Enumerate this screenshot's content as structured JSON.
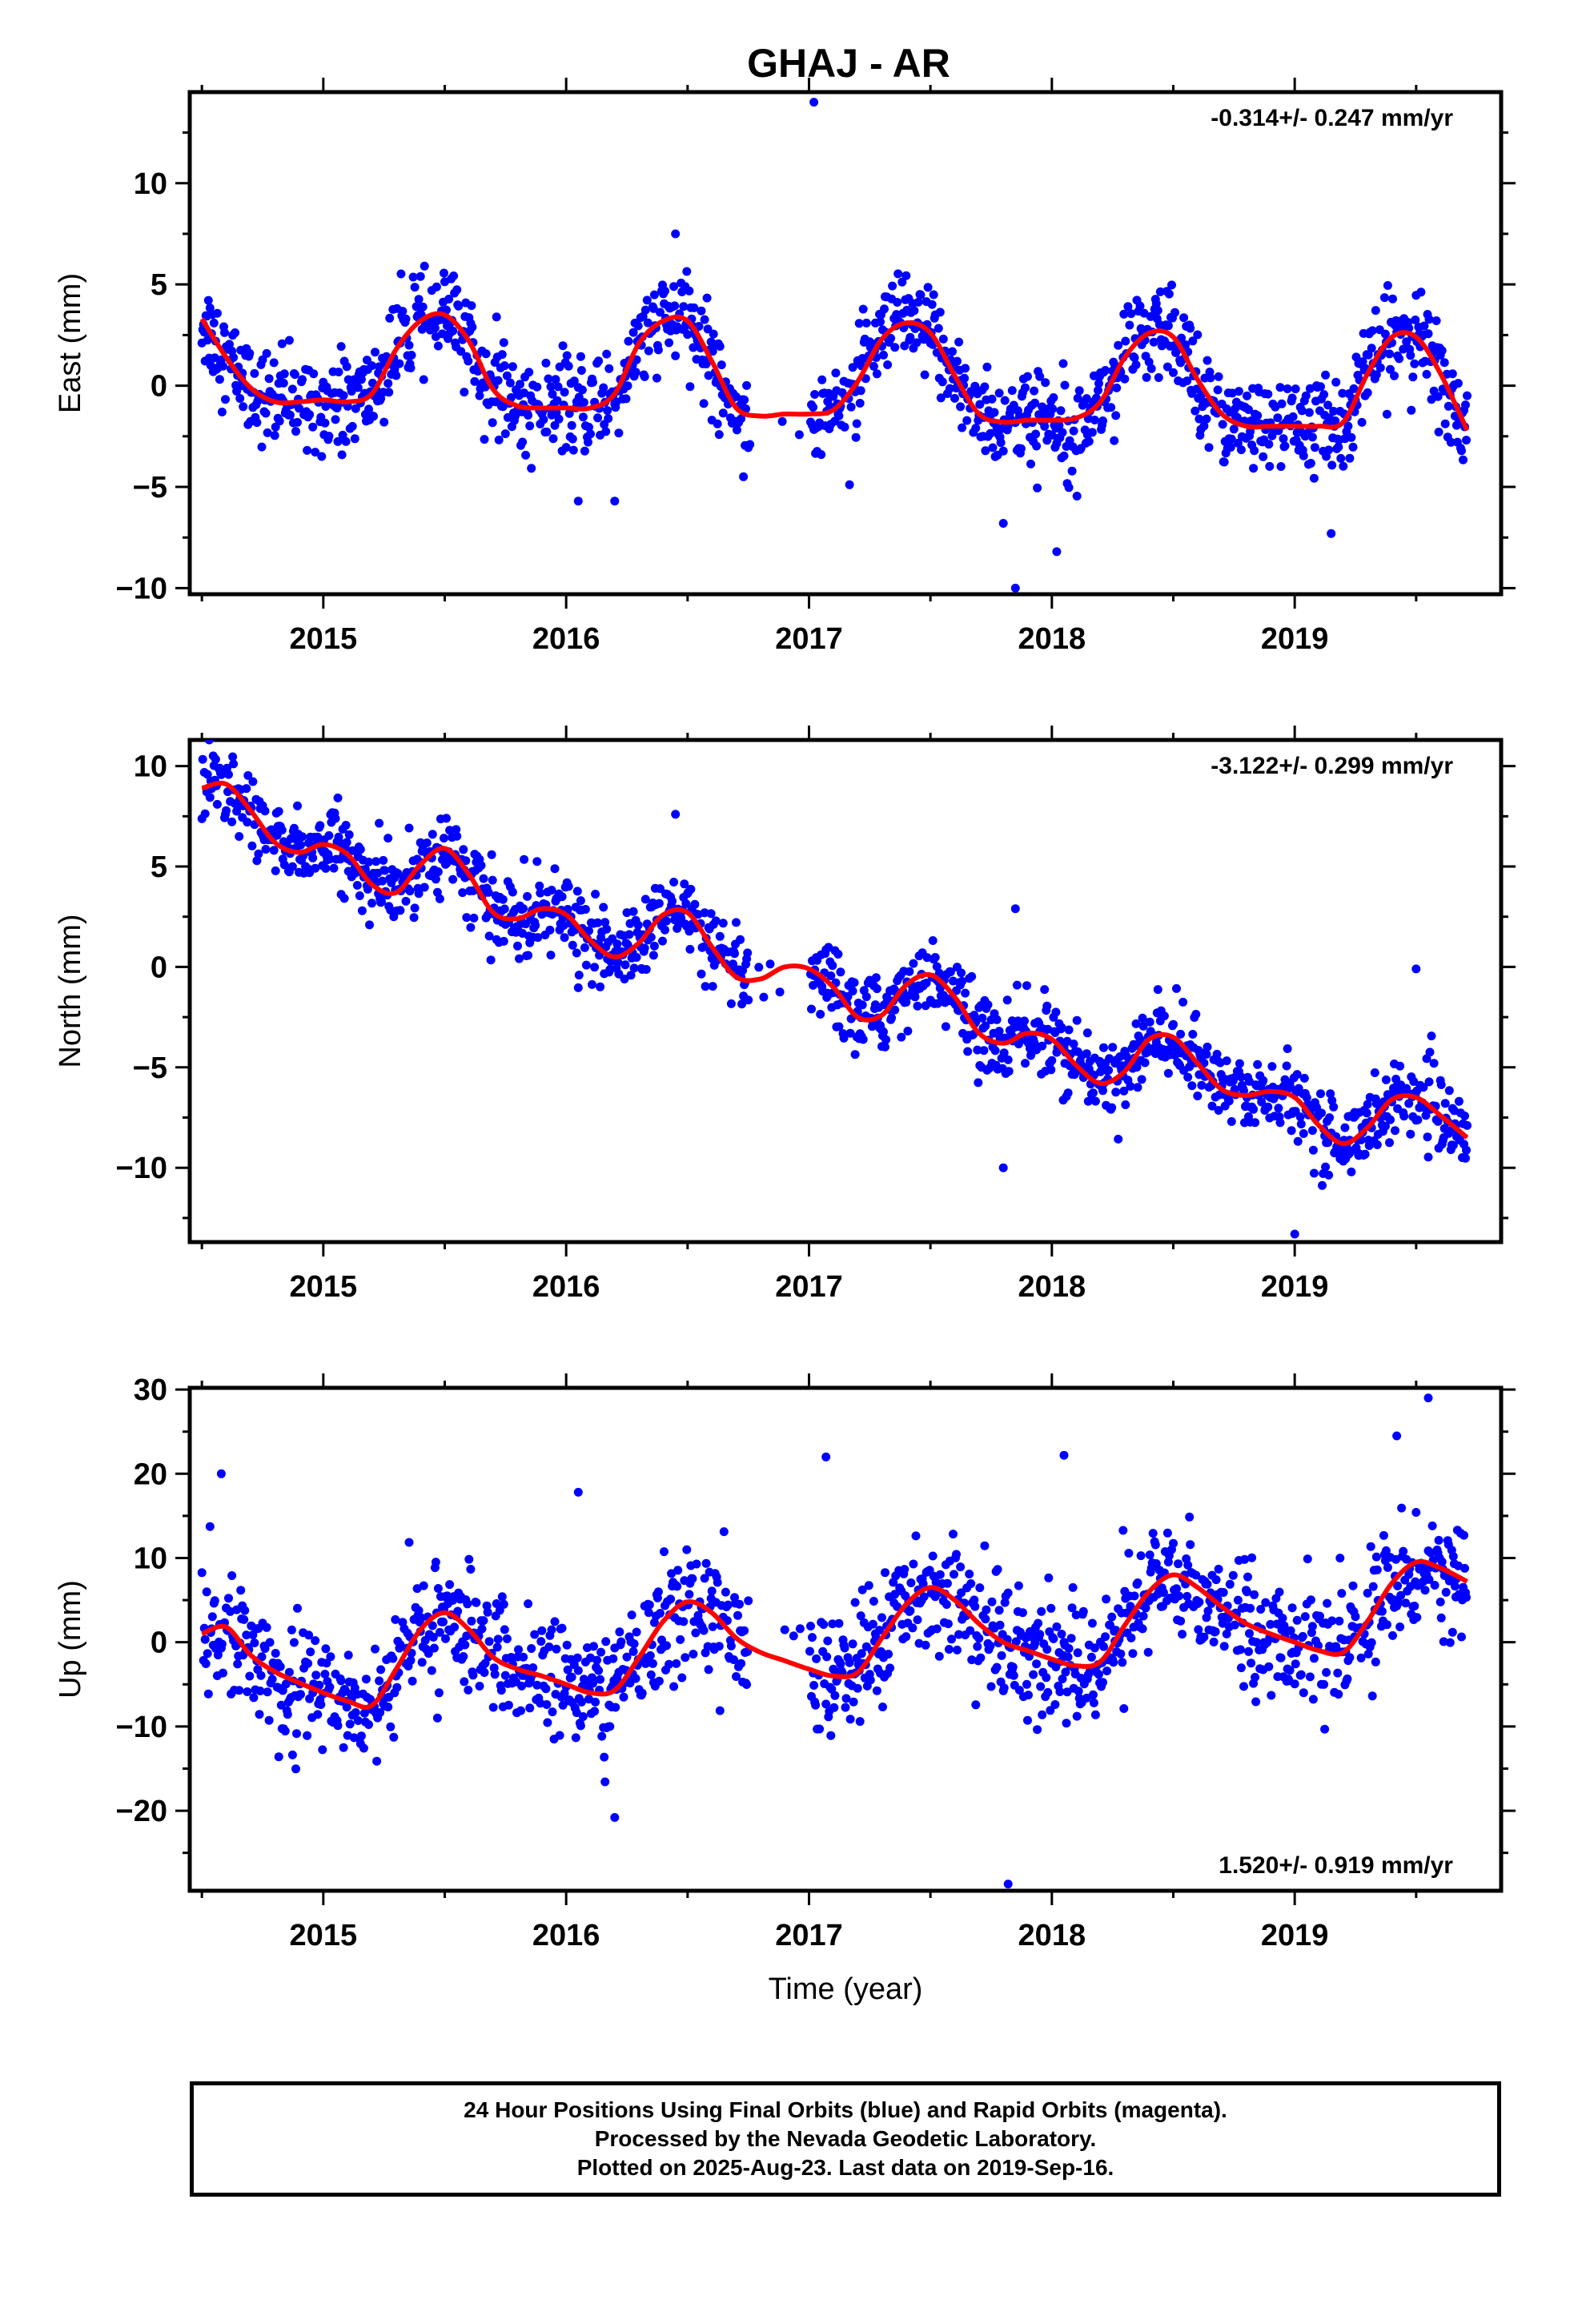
{
  "title": "GHAJ - AR",
  "colors": {
    "data": "#0000ff",
    "fit": "#ff0000",
    "axis": "#000000"
  },
  "chart_data": [
    {
      "type": "scatter",
      "panel": "east",
      "ylabel": "East (mm)",
      "xlabel": "",
      "xlim": [
        2014.45,
        2019.85
      ],
      "ylim": [
        -10.3,
        14.5
      ],
      "yticks": [
        -10,
        -5,
        0,
        5,
        10
      ],
      "xticks": [
        2015,
        2016,
        2017,
        2018,
        2019
      ],
      "trend_label": "-0.314+/- 0.247 mm/yr",
      "trend_position": "top-right",
      "data_gap": [
        2016.75,
        2017.0
      ],
      "data_range": [
        2014.5,
        2019.71
      ],
      "fit": {
        "x": [
          2014.5,
          2014.6,
          2014.7,
          2014.8,
          2014.9,
          2015.0,
          2015.1,
          2015.2,
          2015.3,
          2015.4,
          2015.5,
          2015.6,
          2015.7,
          2015.8,
          2015.9,
          2016.0,
          2016.1,
          2016.2,
          2016.3,
          2016.4,
          2016.5,
          2016.6,
          2016.7,
          2016.8,
          2016.9,
          2017.0,
          2017.1,
          2017.2,
          2017.3,
          2017.4,
          2017.5,
          2017.6,
          2017.7,
          2017.8,
          2017.9,
          2018.0,
          2018.1,
          2018.2,
          2018.3,
          2018.4,
          2018.5,
          2018.6,
          2018.7,
          2018.8,
          2018.9,
          2019.0,
          2019.1,
          2019.2,
          2019.3,
          2019.4,
          2019.5,
          2019.6,
          2019.71
        ],
        "y": [
          3.3,
          1.4,
          -0.1,
          -0.8,
          -0.8,
          -0.7,
          -0.8,
          -0.4,
          1.8,
          3.2,
          3.5,
          2.2,
          -0.2,
          -1.0,
          -1.1,
          -1.1,
          -1.1,
          -0.4,
          2.1,
          3.2,
          3.2,
          1.2,
          -1.1,
          -1.5,
          -1.4,
          -1.4,
          -1.2,
          0.2,
          2.3,
          3.1,
          2.6,
          0.5,
          -1.4,
          -1.8,
          -1.7,
          -1.7,
          -1.6,
          -0.8,
          1.4,
          2.6,
          2.4,
          0.3,
          -1.4,
          -2.0,
          -2.0,
          -2.0,
          -2.0,
          -1.8,
          0.6,
          2.4,
          2.4,
          0.6,
          -2.2
        ]
      },
      "scatter_std": 1.15,
      "outliers": {
        "x": [
          2017.02,
          2017.85,
          2018.02,
          2019.15,
          2016.05,
          2016.2,
          2017.8,
          2016.45
        ],
        "y": [
          14.0,
          -10.0,
          -8.2,
          -7.3,
          -5.7,
          -5.7,
          -6.8,
          7.5
        ]
      }
    },
    {
      "type": "scatter",
      "panel": "north",
      "ylabel": "North (mm)",
      "xlabel": "",
      "xlim": [
        2014.45,
        2019.85
      ],
      "ylim": [
        -13.7,
        11.3
      ],
      "yticks": [
        -10,
        -5,
        0,
        5,
        10
      ],
      "xticks": [
        2015,
        2016,
        2017,
        2018,
        2019
      ],
      "trend_label": "-3.122+/- 0.299 mm/yr",
      "trend_position": "top-right",
      "data_gap": [
        2016.75,
        2017.0
      ],
      "data_range": [
        2014.5,
        2019.71
      ],
      "fit": {
        "x": [
          2014.5,
          2014.6,
          2014.7,
          2014.8,
          2014.9,
          2015.0,
          2015.1,
          2015.2,
          2015.3,
          2015.4,
          2015.5,
          2015.6,
          2015.7,
          2015.8,
          2015.9,
          2016.0,
          2016.1,
          2016.2,
          2016.3,
          2016.4,
          2016.5,
          2016.6,
          2016.7,
          2016.8,
          2016.9,
          2017.0,
          2017.1,
          2017.2,
          2017.3,
          2017.4,
          2017.5,
          2017.6,
          2017.7,
          2017.8,
          2017.9,
          2018.0,
          2018.1,
          2018.2,
          2018.3,
          2018.4,
          2018.5,
          2018.6,
          2018.7,
          2018.8,
          2018.9,
          2019.0,
          2019.1,
          2019.2,
          2019.3,
          2019.4,
          2019.5,
          2019.6,
          2019.71
        ],
        "y": [
          8.9,
          9.1,
          7.8,
          6.2,
          5.7,
          6.1,
          5.6,
          4.1,
          3.7,
          5.1,
          5.9,
          4.6,
          2.7,
          2.4,
          2.9,
          2.6,
          1.3,
          0.5,
          1.2,
          2.6,
          2.7,
          1.0,
          -0.5,
          -0.6,
          0.0,
          -0.1,
          -1.0,
          -2.5,
          -2.4,
          -0.9,
          -0.4,
          -1.5,
          -3.3,
          -3.8,
          -3.3,
          -3.6,
          -4.9,
          -5.8,
          -5.2,
          -3.6,
          -3.5,
          -4.8,
          -6.1,
          -6.4,
          -6.2,
          -6.5,
          -7.9,
          -8.8,
          -8.0,
          -6.6,
          -6.5,
          -7.4,
          -8.5
        ]
      },
      "scatter_std": 0.95,
      "outliers": {
        "x": [
          2017.8,
          2019.5,
          2019.0,
          2016.45,
          2017.85
        ],
        "y": [
          -10.0,
          -0.1,
          -13.3,
          7.6,
          2.9
        ]
      }
    },
    {
      "type": "scatter",
      "panel": "up",
      "ylabel": "Up (mm)",
      "xlabel": "Time (year)",
      "xlim": [
        2014.45,
        2019.85
      ],
      "ylim": [
        -29.5,
        30.2
      ],
      "yticks": [
        -20,
        -10,
        0,
        10,
        20,
        30
      ],
      "xticks": [
        2015,
        2016,
        2017,
        2018,
        2019
      ],
      "trend_label": "1.520+/- 0.919 mm/yr",
      "trend_position": "bottom-right",
      "data_gap": [
        2016.75,
        2017.0
      ],
      "data_range": [
        2014.5,
        2019.71
      ],
      "fit": {
        "x": [
          2014.5,
          2014.6,
          2014.7,
          2014.8,
          2014.9,
          2015.0,
          2015.1,
          2015.2,
          2015.3,
          2015.4,
          2015.5,
          2015.6,
          2015.7,
          2015.8,
          2015.9,
          2016.0,
          2016.1,
          2016.2,
          2016.3,
          2016.4,
          2016.5,
          2016.6,
          2016.7,
          2016.8,
          2016.9,
          2017.0,
          2017.1,
          2017.2,
          2017.3,
          2017.4,
          2017.5,
          2017.6,
          2017.7,
          2017.8,
          2017.9,
          2018.0,
          2018.1,
          2018.2,
          2018.3,
          2018.4,
          2018.5,
          2018.6,
          2018.7,
          2018.8,
          2018.9,
          2019.0,
          2019.1,
          2019.2,
          2019.3,
          2019.4,
          2019.5,
          2019.6,
          2019.71
        ],
        "y": [
          1.0,
          1.8,
          -1.5,
          -3.5,
          -4.8,
          -6.0,
          -7.0,
          -7.5,
          -3.2,
          1.5,
          3.5,
          1.5,
          -1.8,
          -3.2,
          -4.0,
          -5.0,
          -6.0,
          -5.7,
          -1.8,
          2.5,
          4.8,
          3.5,
          0.5,
          -1.2,
          -2.2,
          -3.2,
          -4.0,
          -3.6,
          0.5,
          4.5,
          6.5,
          5.0,
          2.2,
          0.0,
          -1.0,
          -2.0,
          -2.8,
          -2.3,
          2.0,
          6.0,
          8.0,
          6.5,
          4.2,
          2.2,
          1.0,
          0.0,
          -1.0,
          -1.2,
          2.5,
          7.0,
          9.5,
          8.8,
          7.2
        ]
      },
      "scatter_std": 3.5,
      "outliers": {
        "x": [
          2017.07,
          2017.82,
          2018.05,
          2019.55,
          2014.58,
          2016.2,
          2016.05,
          2019.42
        ],
        "y": [
          22.0,
          -28.7,
          22.2,
          29.0,
          20.0,
          -20.8,
          17.8,
          24.5
        ]
      }
    }
  ],
  "caption": {
    "line1": "24 Hour Positions Using Final Orbits (blue) and Rapid Orbits (magenta).",
    "line2": "Processed by the Nevada Geodetic Laboratory.",
    "line3": "Plotted on 2025-Aug-23. Last data on 2019-Sep-16."
  }
}
